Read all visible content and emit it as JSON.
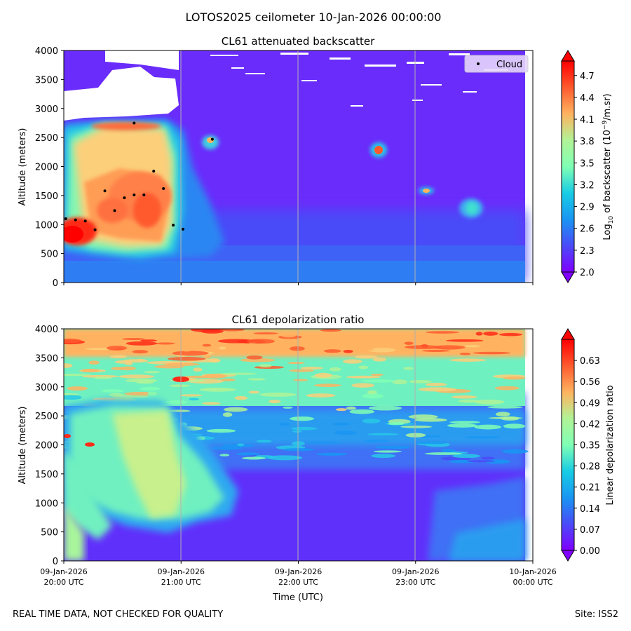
{
  "figure_title": "LOTOS2025 ceilometer 10-Jan-2026 00:00:00",
  "footer_left": "REAL TIME DATA, NOT CHECKED FOR QUALITY",
  "footer_right": "Site: ISS2",
  "colors": {
    "cloud_marker": "#000000",
    "legend_bg": "#e6d6fb",
    "grid": "#b0b0b0"
  },
  "chart_data": [
    {
      "type": "heatmap",
      "title": "CL61 attenuated backscatter",
      "xlabel": "",
      "ylabel": "Altitude (meters)",
      "ylim": [
        0,
        4000
      ],
      "yticks": [
        "0",
        "500",
        "1000",
        "1500",
        "2000",
        "2500",
        "3000",
        "3500",
        "4000"
      ],
      "xlim_minutes": [
        0,
        240
      ],
      "colorbar": {
        "label_main": "Log",
        "label_sub": "10",
        "label_rest": " of backscatter (10",
        "label_exp": "−9",
        "label_end": "/m.sr)",
        "range": [
          2.0,
          4.9
        ],
        "ticks": [
          "2.0",
          "2.3",
          "2.6",
          "2.9",
          "3.2",
          "3.5",
          "3.8",
          "4.1",
          "4.4",
          "4.7"
        ]
      },
      "legend": {
        "label": "Cloud",
        "location": "top-right"
      },
      "cloud_points": [
        {
          "t": 1,
          "alt": 1100
        },
        {
          "t": 6,
          "alt": 1080
        },
        {
          "t": 11,
          "alt": 1060
        },
        {
          "t": 16,
          "alt": 910
        },
        {
          "t": 21,
          "alt": 1580
        },
        {
          "t": 26,
          "alt": 1240
        },
        {
          "t": 31,
          "alt": 1460
        },
        {
          "t": 36,
          "alt": 2750
        },
        {
          "t": 36,
          "alt": 1510
        },
        {
          "t": 41,
          "alt": 1510
        },
        {
          "t": 46,
          "alt": 1920
        },
        {
          "t": 51,
          "alt": 1620
        },
        {
          "t": 56,
          "alt": 990
        },
        {
          "t": 61,
          "alt": 920
        },
        {
          "t": 76,
          "alt": 2470
        }
      ]
    },
    {
      "type": "heatmap",
      "title": "CL61 depolarization ratio",
      "xlabel": "Time (UTC)",
      "ylabel": "Altitude (meters)",
      "ylim": [
        0,
        4000
      ],
      "yticks": [
        "0",
        "500",
        "1000",
        "1500",
        "2000",
        "2500",
        "3000",
        "3500",
        "4000"
      ],
      "xlim_minutes": [
        0,
        240
      ],
      "xticks": [
        {
          "date": "09-Jan-2026",
          "time": "20:00 UTC"
        },
        {
          "date": "09-Jan-2026",
          "time": "21:00 UTC"
        },
        {
          "date": "09-Jan-2026",
          "time": "22:00 UTC"
        },
        {
          "date": "09-Jan-2026",
          "time": "23:00 UTC"
        },
        {
          "date": "10-Jan-2026",
          "time": "00:00 UTC"
        }
      ],
      "colorbar": {
        "label": "Linear depolarization ratio",
        "range": [
          0.0,
          0.7
        ],
        "ticks": [
          "0.00",
          "0.07",
          "0.14",
          "0.21",
          "0.28",
          "0.35",
          "0.42",
          "0.49",
          "0.56",
          "0.63"
        ]
      }
    }
  ]
}
